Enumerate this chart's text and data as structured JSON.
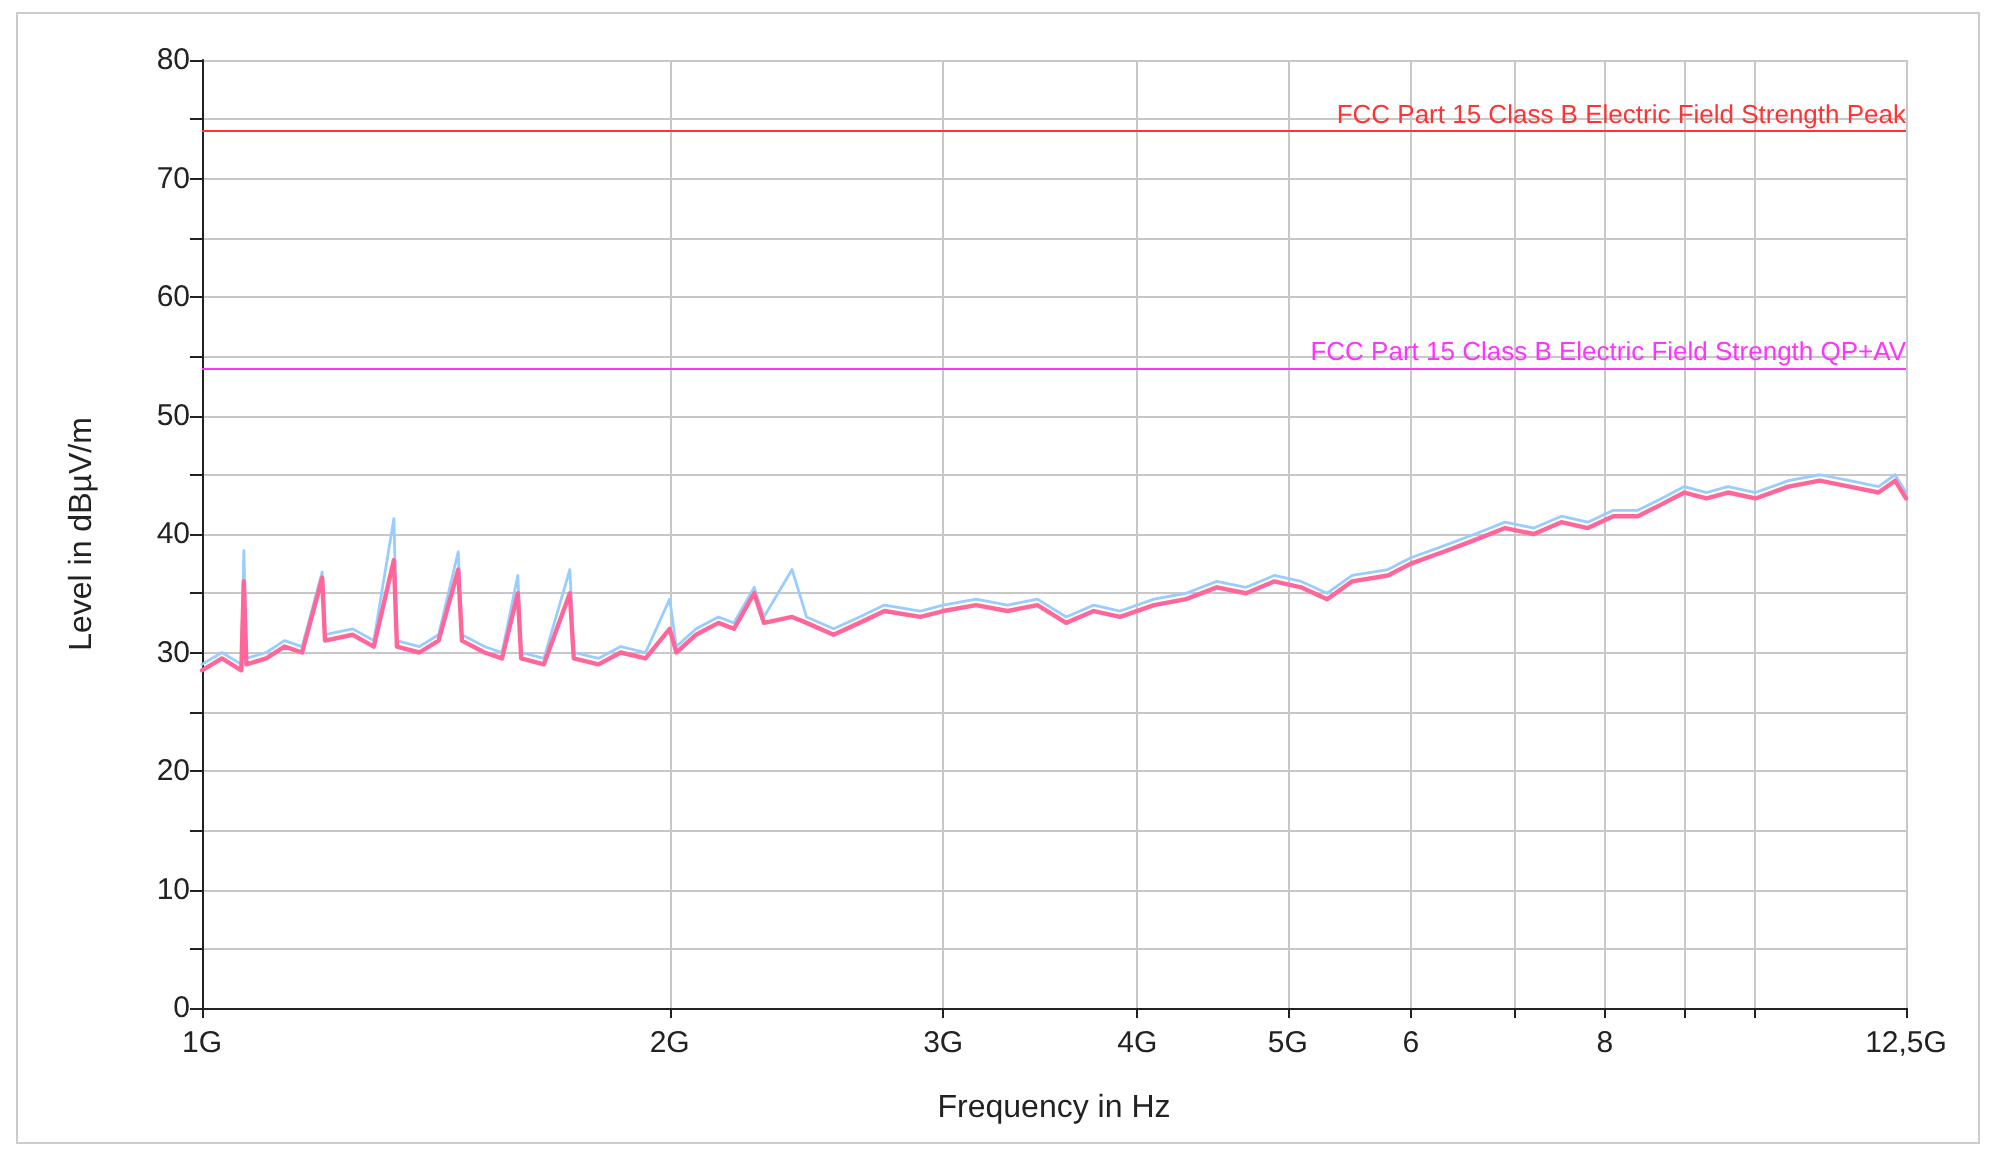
{
  "chart_data": {
    "type": "line",
    "xlabel": "Frequency in Hz",
    "ylabel": "Level in dBµV/m",
    "log": "x",
    "grid": true,
    "xlim": [
      1,
      12.5
    ],
    "xticks": [
      {
        "value": 1,
        "label": "1G"
      },
      {
        "value": 2,
        "label": "2G"
      },
      {
        "value": 3,
        "label": "3G"
      },
      {
        "value": 4,
        "label": "4G"
      },
      {
        "value": 5,
        "label": "5G"
      },
      6,
      {
        "value": 7,
        "label": null
      },
      8,
      {
        "value": 9,
        "label": null
      },
      {
        "value": 10,
        "label": null
      },
      {
        "value": 12.5,
        "label": "12,5G"
      }
    ],
    "ylim": [
      0,
      80
    ],
    "yticks": [
      0,
      {
        "value": 5,
        "label": null
      },
      10,
      {
        "value": 15,
        "label": null
      },
      20,
      {
        "value": 25,
        "label": null
      },
      30,
      {
        "value": 35,
        "label": null
      },
      40,
      {
        "value": 45,
        "label": null
      },
      50,
      {
        "value": 55,
        "label": null
      },
      60,
      {
        "value": 65,
        "label": null
      },
      70,
      {
        "value": 75,
        "label": null
      },
      80
    ],
    "x": [
      1.0,
      1.03,
      1.06,
      1.064,
      1.068,
      1.1,
      1.13,
      1.16,
      1.195,
      1.2,
      1.25,
      1.29,
      1.329,
      1.335,
      1.38,
      1.42,
      1.462,
      1.47,
      1.52,
      1.56,
      1.597,
      1.605,
      1.66,
      1.725,
      1.735,
      1.8,
      1.86,
      1.93,
      2.0,
      2.02,
      2.08,
      2.15,
      2.2,
      2.267,
      2.3,
      2.398,
      2.45,
      2.55,
      2.65,
      2.75,
      2.9,
      3.0,
      3.15,
      3.3,
      3.45,
      3.6,
      3.75,
      3.9,
      4.1,
      4.3,
      4.5,
      4.7,
      4.9,
      5.1,
      5.3,
      5.5,
      5.8,
      6.0,
      6.3,
      6.6,
      6.9,
      7.2,
      7.5,
      7.8,
      8.1,
      8.4,
      8.7,
      9.0,
      9.3,
      9.6,
      10.0,
      10.5,
      11.0,
      11.5,
      12.0,
      12.3,
      12.5
    ],
    "series": [
      {
        "color": "#99ccff",
        "values": [
          29,
          30,
          29,
          38.6,
          29.5,
          30,
          31,
          30.5,
          36.8,
          31.5,
          32,
          31,
          41.3,
          31,
          30.5,
          31.5,
          38.5,
          31.5,
          30.5,
          30,
          36.5,
          30,
          29.5,
          37,
          30,
          29.5,
          30.5,
          30,
          34.5,
          30.5,
          32,
          33,
          32.5,
          35.5,
          33,
          37,
          33,
          32,
          33,
          34,
          33.5,
          34,
          34.5,
          34,
          34.5,
          33,
          34,
          33.5,
          34.5,
          35,
          36,
          35.5,
          36.5,
          36,
          35,
          36.5,
          37,
          38,
          39,
          40,
          41,
          40.5,
          41.5,
          41,
          42,
          42,
          43,
          44,
          43.5,
          44,
          43.5,
          44.5,
          45,
          44.5,
          44,
          45,
          43.5
        ]
      },
      {
        "color": "#ff6699",
        "values": [
          28.5,
          29.5,
          28.5,
          36,
          29,
          29.5,
          30.5,
          30,
          36.3,
          31,
          31.5,
          30.5,
          37.8,
          30.5,
          30,
          31,
          37,
          31,
          30,
          29.5,
          35,
          29.5,
          29,
          35,
          29.5,
          29,
          30,
          29.5,
          32,
          30,
          31.5,
          32.5,
          32,
          35,
          32.5,
          33,
          32.5,
          31.5,
          32.5,
          33.5,
          33,
          33.5,
          34,
          33.5,
          34,
          32.5,
          33.5,
          33,
          34,
          34.5,
          35.5,
          35,
          36,
          35.5,
          34.5,
          36,
          36.5,
          37.5,
          38.5,
          39.5,
          40.5,
          40,
          41,
          40.5,
          41.5,
          41.5,
          42.5,
          43.5,
          43,
          43.5,
          43,
          44,
          44.5,
          44,
          43.5,
          44.5,
          43
        ]
      }
    ],
    "ref_lines": [
      {
        "axis": "y",
        "value": 74,
        "label": "FCC Part 15 Class B Electric Field Strength Peak",
        "color": "#ff3333"
      },
      {
        "axis": "y",
        "value": 54,
        "label": "FCC Part 15 Class B Electric Field Strength QP+AV",
        "color": "#ff33ff"
      }
    ]
  }
}
